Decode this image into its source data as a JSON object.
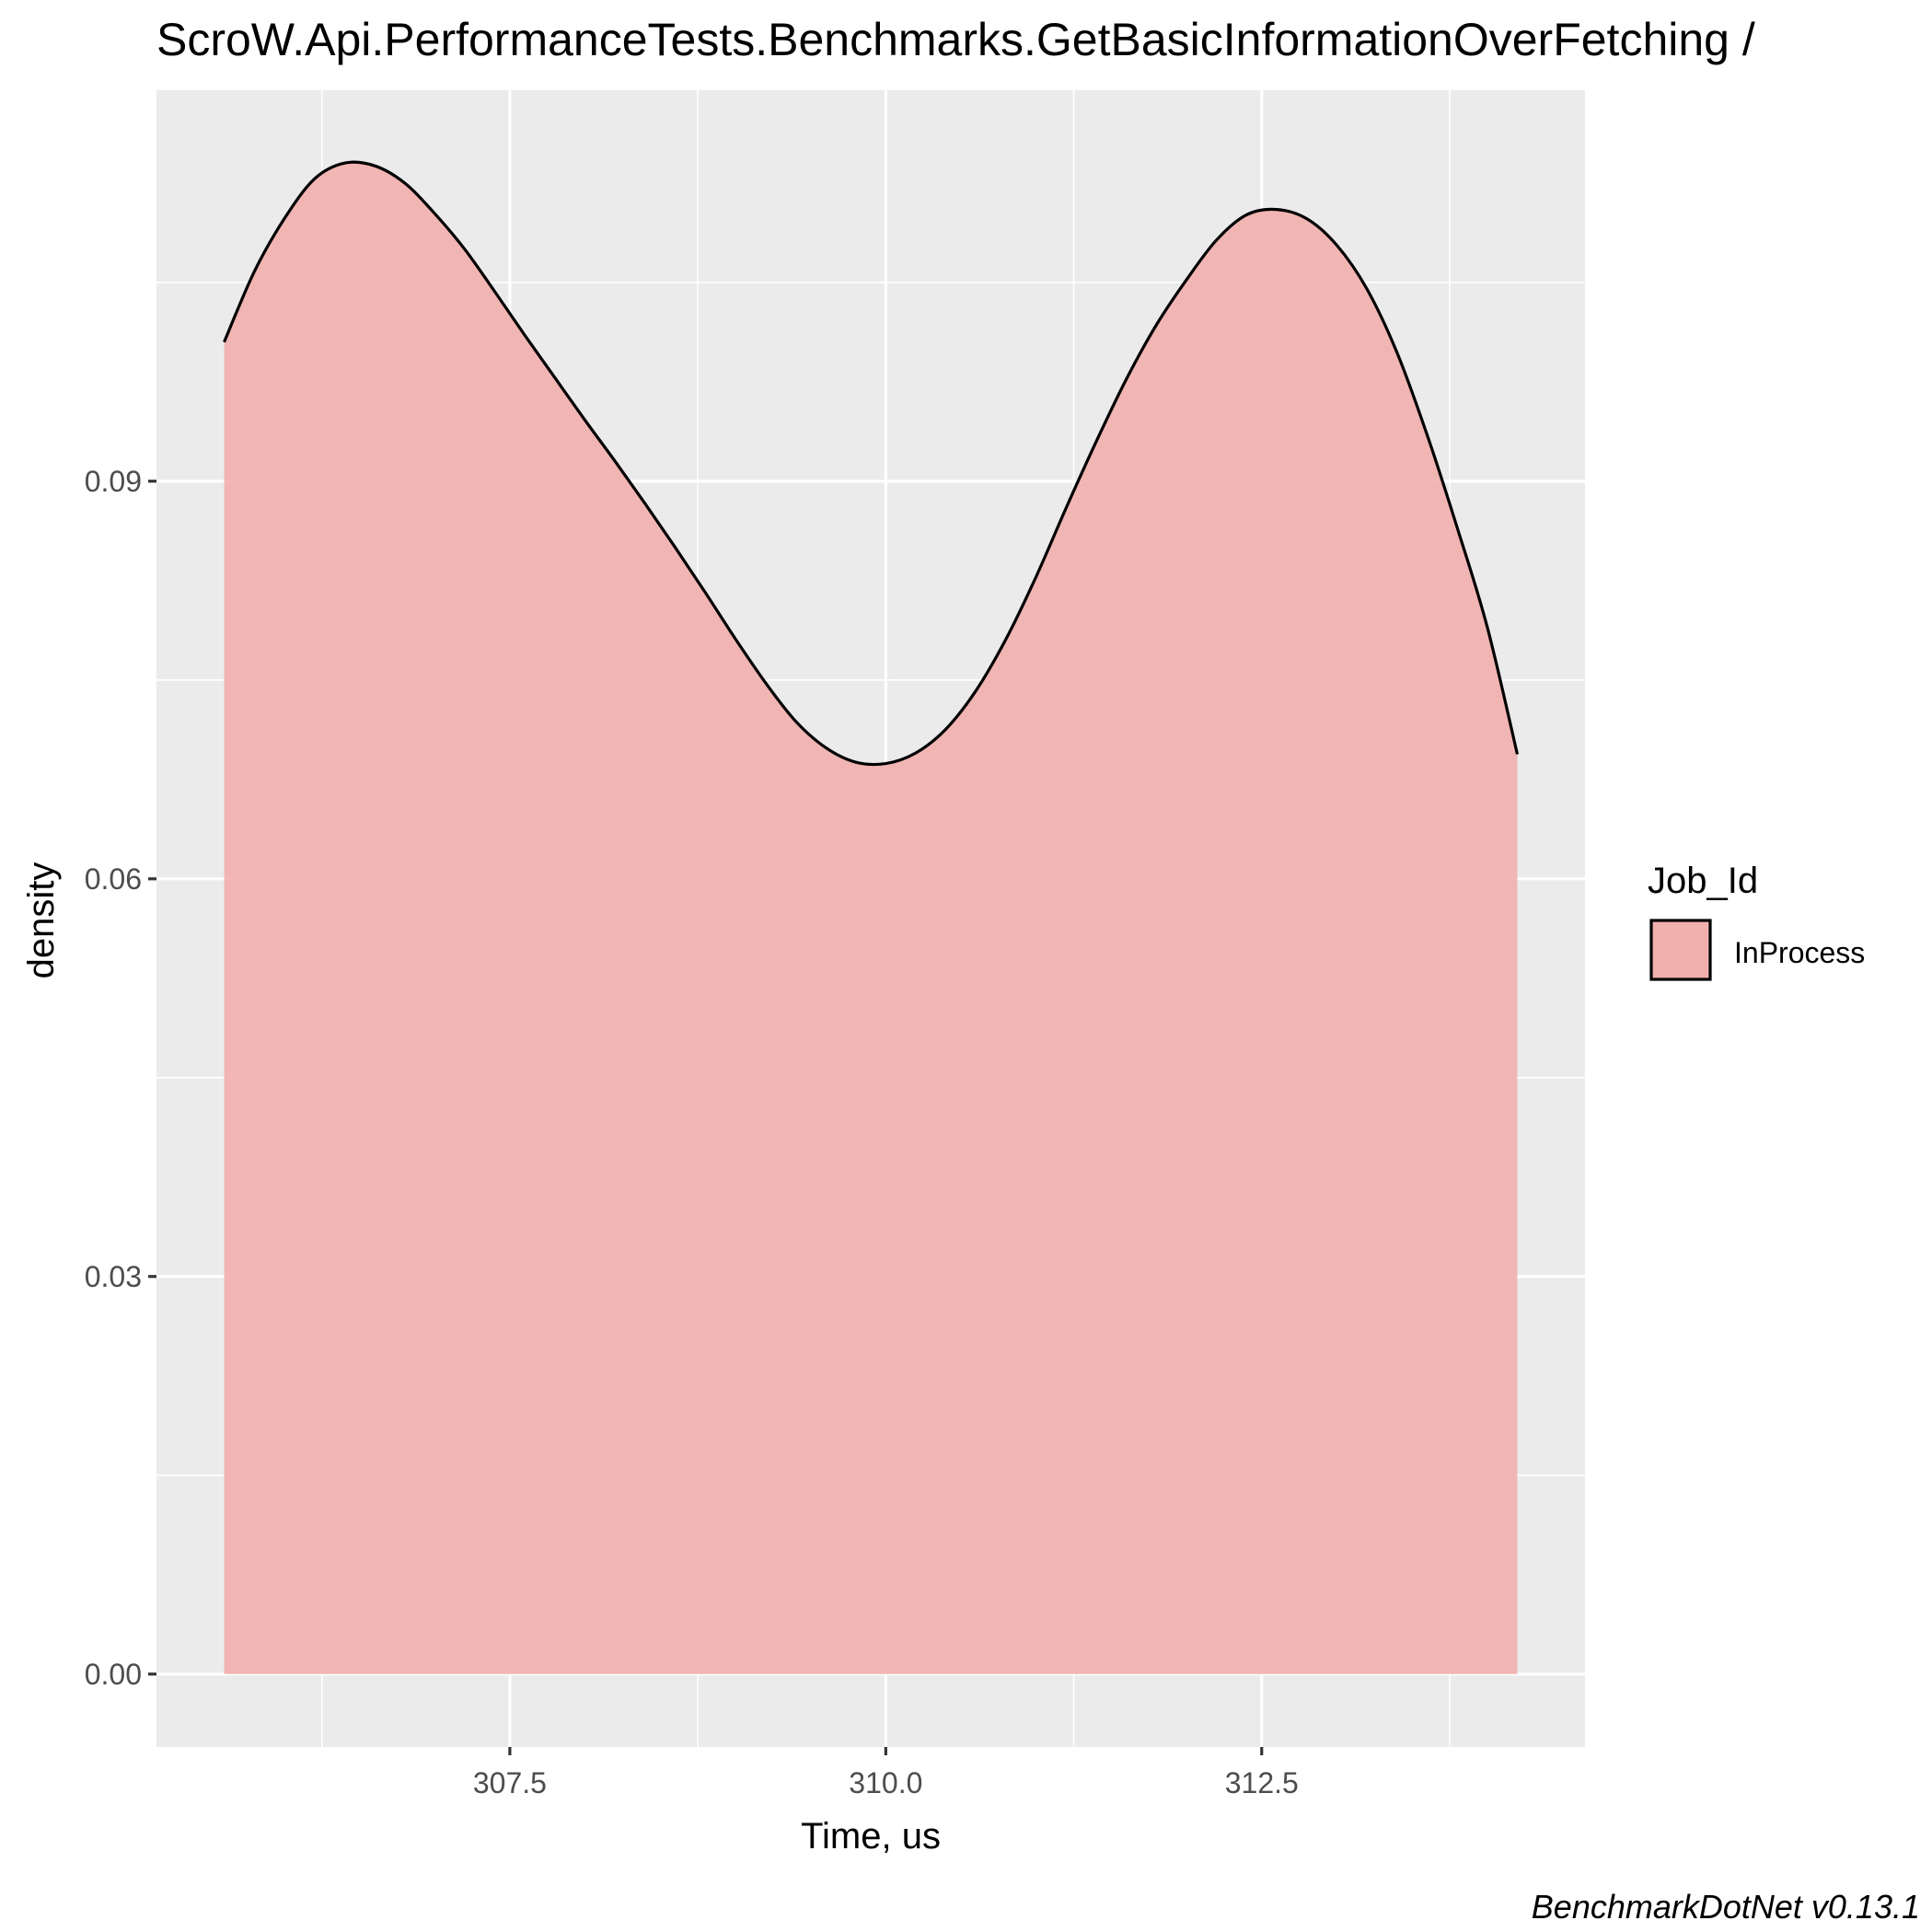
{
  "chart_data": {
    "type": "area",
    "title": "ScroW.Api.PerformanceTests.Benchmarks.GetBasicInformationOverFetching /",
    "xlabel": "Time, us",
    "ylabel": "density",
    "caption": "BenchmarkDotNet v0.13.1",
    "xlim": [
      305.15,
      314.65
    ],
    "ylim": [
      -0.0055,
      0.1195
    ],
    "x_ticks": [
      307.5,
      310.0,
      312.5
    ],
    "x_tick_labels": [
      "307.5",
      "310.0",
      "312.5"
    ],
    "y_ticks": [
      0.0,
      0.03,
      0.06,
      0.09
    ],
    "y_tick_labels": [
      "0.00",
      "0.03",
      "0.06",
      "0.09"
    ],
    "grid": true,
    "legend": {
      "title": "Job_Id",
      "position": "right",
      "entries": [
        "InProcess"
      ]
    },
    "fill_color": "#f1b0ae",
    "line_color": "#000000",
    "panel_color": "#ebebeb",
    "series": [
      {
        "name": "InProcess",
        "x": [
          305.6,
          305.8,
          306.0,
          306.2,
          306.4,
          306.6,
          306.8,
          307.0,
          307.2,
          307.4,
          307.6,
          307.8,
          308.0,
          308.2,
          308.4,
          308.6,
          308.8,
          309.0,
          309.2,
          309.4,
          309.6,
          309.8,
          310.0,
          310.2,
          310.4,
          310.6,
          310.8,
          311.0,
          311.2,
          311.4,
          311.6,
          311.8,
          312.0,
          312.2,
          312.4,
          312.6,
          312.8,
          313.0,
          313.2,
          313.4,
          313.6,
          313.8,
          314.0,
          314.2
        ],
        "values": [
          0.1005,
          0.1058,
          0.1098,
          0.1128,
          0.114,
          0.1138,
          0.1125,
          0.1102,
          0.1075,
          0.1043,
          0.101,
          0.0978,
          0.0946,
          0.0915,
          0.0883,
          0.085,
          0.0816,
          0.0781,
          0.0748,
          0.0719,
          0.0699,
          0.0688,
          0.0687,
          0.0695,
          0.0713,
          0.0742,
          0.0781,
          0.0828,
          0.088,
          0.093,
          0.0977,
          0.1018,
          0.1052,
          0.1082,
          0.1101,
          0.1105,
          0.1098,
          0.1078,
          0.1045,
          0.0997,
          0.0935,
          0.0865,
          0.079,
          0.0694
        ]
      }
    ]
  }
}
